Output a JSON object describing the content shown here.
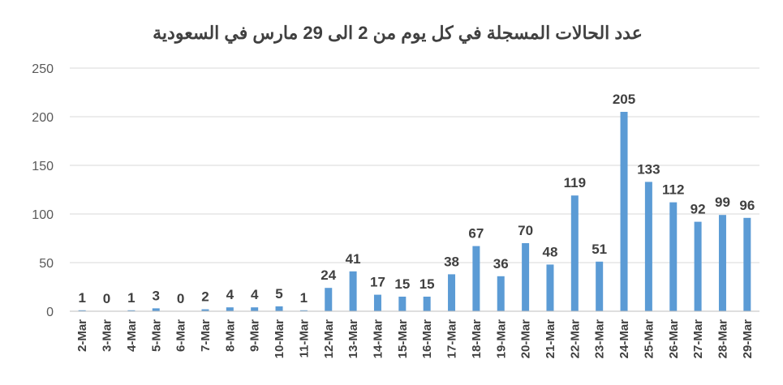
{
  "chart_data": {
    "type": "bar",
    "title": "عدد الحالات المسجلة في كل يوم من 2 الى 29 مارس في السعودية",
    "xlabel": "",
    "ylabel": "",
    "ylim": [
      0,
      250
    ],
    "yticks": [
      0,
      50,
      100,
      150,
      200,
      250
    ],
    "grid": true,
    "legend": "none",
    "bar_color": "#5b9bd5",
    "categories": [
      "2-Mar",
      "3-Mar",
      "4-Mar",
      "5-Mar",
      "6-Mar",
      "7-Mar",
      "8-Mar",
      "9-Mar",
      "10-Mar",
      "11-Mar",
      "12-Mar",
      "13-Mar",
      "14-Mar",
      "15-Mar",
      "16-Mar",
      "17-Mar",
      "18-Mar",
      "19-Mar",
      "20-Mar",
      "21-Mar",
      "22-Mar",
      "23-Mar",
      "24-Mar",
      "25-Mar",
      "26-Mar",
      "27-Mar",
      "28-Mar",
      "29-Mar"
    ],
    "values": [
      1,
      0,
      1,
      3,
      0,
      2,
      4,
      4,
      5,
      1,
      24,
      41,
      17,
      15,
      15,
      38,
      67,
      36,
      70,
      48,
      119,
      51,
      205,
      133,
      112,
      92,
      99,
      96
    ]
  }
}
